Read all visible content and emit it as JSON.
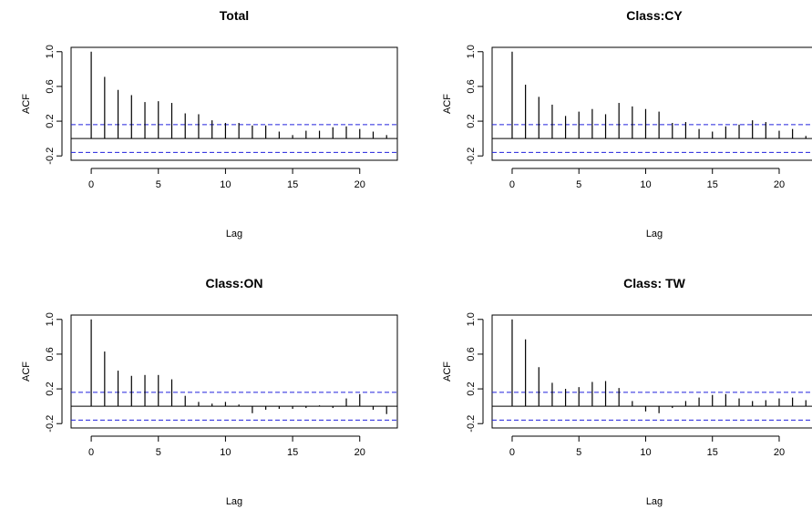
{
  "chart_data": [
    {
      "type": "bar",
      "title": "Total",
      "xlabel": "Lag",
      "ylabel": "ACF",
      "x": [
        0,
        1,
        2,
        3,
        4,
        5,
        6,
        7,
        8,
        9,
        10,
        11,
        12,
        13,
        14,
        15,
        16,
        17,
        18,
        19,
        20,
        21,
        22
      ],
      "values": [
        1.0,
        0.71,
        0.56,
        0.5,
        0.42,
        0.43,
        0.41,
        0.29,
        0.28,
        0.21,
        0.18,
        0.18,
        0.15,
        0.15,
        0.08,
        0.04,
        0.09,
        0.09,
        0.13,
        0.14,
        0.11,
        0.08,
        0.04
      ],
      "ci": 0.16,
      "xlim": [
        -1.5,
        22.8
      ],
      "ylim": [
        -0.25,
        1.05
      ],
      "xticks": [
        "0",
        "5",
        "10",
        "15",
        "20"
      ],
      "yticks": [
        "-0.2",
        "0.2",
        "0.6",
        "1.0"
      ]
    },
    {
      "type": "bar",
      "title": "Class:CY",
      "xlabel": "Lag",
      "ylabel": "ACF",
      "x": [
        0,
        1,
        2,
        3,
        4,
        5,
        6,
        7,
        8,
        9,
        10,
        11,
        12,
        13,
        14,
        15,
        16,
        17,
        18,
        19,
        20,
        21,
        22
      ],
      "values": [
        1.0,
        0.62,
        0.48,
        0.39,
        0.26,
        0.31,
        0.34,
        0.28,
        0.41,
        0.37,
        0.34,
        0.31,
        0.18,
        0.19,
        0.11,
        0.08,
        0.14,
        0.16,
        0.21,
        0.19,
        0.09,
        0.11,
        0.03
      ],
      "ci": 0.16,
      "xlim": [
        -1.5,
        22.8
      ],
      "ylim": [
        -0.25,
        1.05
      ],
      "xticks": [
        "0",
        "5",
        "10",
        "15",
        "20"
      ],
      "yticks": [
        "-0.2",
        "0.2",
        "0.6",
        "1.0"
      ]
    },
    {
      "type": "bar",
      "title": "Class:ON",
      "xlabel": "Lag",
      "ylabel": "ACF",
      "x": [
        0,
        1,
        2,
        3,
        4,
        5,
        6,
        7,
        8,
        9,
        10,
        11,
        12,
        13,
        14,
        15,
        16,
        17,
        18,
        19,
        20,
        21,
        22
      ],
      "values": [
        1.0,
        0.63,
        0.41,
        0.35,
        0.36,
        0.36,
        0.31,
        0.12,
        0.05,
        0.03,
        0.05,
        0.02,
        -0.08,
        -0.04,
        -0.03,
        -0.03,
        -0.02,
        0.01,
        -0.02,
        0.09,
        0.14,
        -0.04,
        -0.09
      ],
      "ci": 0.16,
      "xlim": [
        -1.5,
        22.8
      ],
      "ylim": [
        -0.25,
        1.05
      ],
      "xticks": [
        "0",
        "5",
        "10",
        "15",
        "20"
      ],
      "yticks": [
        "-0.2",
        "0.2",
        "0.6",
        "1.0"
      ]
    },
    {
      "type": "bar",
      "title": "Class: TW",
      "xlabel": "Lag",
      "ylabel": "ACF",
      "x": [
        0,
        1,
        2,
        3,
        4,
        5,
        6,
        7,
        8,
        9,
        10,
        11,
        12,
        13,
        14,
        15,
        16,
        17,
        18,
        19,
        20,
        21,
        22
      ],
      "values": [
        1.0,
        0.77,
        0.45,
        0.27,
        0.2,
        0.22,
        0.28,
        0.29,
        0.21,
        0.06,
        -0.06,
        -0.08,
        -0.02,
        0.06,
        0.1,
        0.13,
        0.14,
        0.09,
        0.06,
        0.07,
        0.09,
        0.1,
        0.07
      ],
      "ci": 0.16,
      "xlim": [
        -1.5,
        22.8
      ],
      "ylim": [
        -0.25,
        1.05
      ],
      "xticks": [
        "0",
        "5",
        "10",
        "15",
        "20"
      ],
      "yticks": [
        "-0.2",
        "0.2",
        "0.6",
        "1.0"
      ]
    }
  ]
}
